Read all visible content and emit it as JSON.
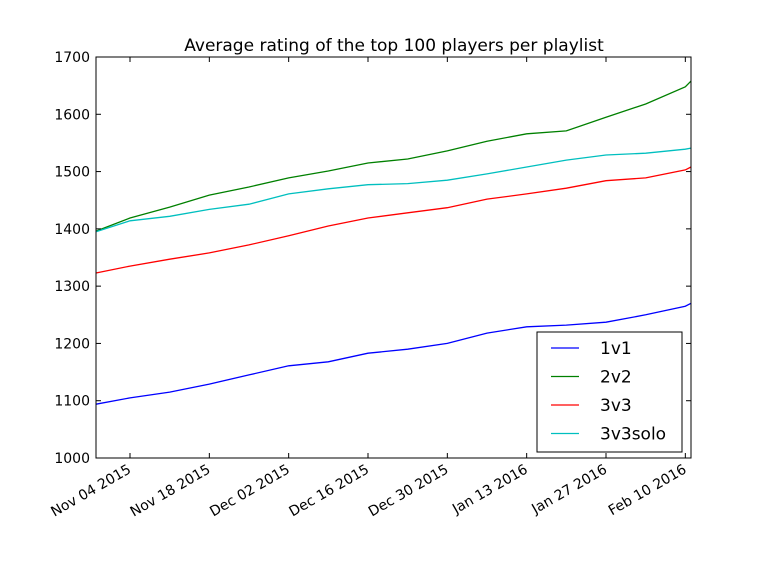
{
  "chart_data": {
    "type": "line",
    "title": "Average rating of the top 100 players per playlist",
    "xlabel": "",
    "ylabel": "",
    "xlim": [
      "2015-10-29",
      "2016-02-11"
    ],
    "ylim": [
      1000,
      1700
    ],
    "yticks": [
      1000,
      1100,
      1200,
      1300,
      1400,
      1500,
      1600,
      1700
    ],
    "xticks": [
      {
        "date": "2015-11-04",
        "label": "Nov 04 2015"
      },
      {
        "date": "2015-11-18",
        "label": "Nov 18 2015"
      },
      {
        "date": "2015-12-02",
        "label": "Dec 02 2015"
      },
      {
        "date": "2015-12-16",
        "label": "Dec 16 2015"
      },
      {
        "date": "2015-12-30",
        "label": "Dec 30 2015"
      },
      {
        "date": "2016-01-13",
        "label": "Jan 13 2016"
      },
      {
        "date": "2016-01-27",
        "label": "Jan 27 2016"
      },
      {
        "date": "2016-02-10",
        "label": "Feb 10 2016"
      }
    ],
    "grid": false,
    "legend_position": "bottom-right",
    "x": [
      "2015-10-29",
      "2015-11-04",
      "2015-11-11",
      "2015-11-18",
      "2015-11-25",
      "2015-12-02",
      "2015-12-09",
      "2015-12-16",
      "2015-12-23",
      "2015-12-30",
      "2016-01-06",
      "2016-01-13",
      "2016-01-20",
      "2016-01-27",
      "2016-02-03",
      "2016-02-10",
      "2016-02-11"
    ],
    "series": [
      {
        "name": "1v1",
        "color": "#0000ff",
        "values": [
          1094,
          1105,
          1115,
          1129,
          1145,
          1161,
          1168,
          1183,
          1190,
          1200,
          1218,
          1229,
          1232,
          1237,
          1250,
          1265,
          1270
        ]
      },
      {
        "name": "2v2",
        "color": "#008000",
        "values": [
          1396,
          1419,
          1438,
          1459,
          1473,
          1489,
          1501,
          1515,
          1522,
          1536,
          1553,
          1566,
          1571,
          1595,
          1618,
          1648,
          1658
        ]
      },
      {
        "name": "3v3",
        "color": "#ff0000",
        "values": [
          1323,
          1335,
          1347,
          1358,
          1372,
          1388,
          1405,
          1419,
          1428,
          1437,
          1452,
          1461,
          1471,
          1484,
          1489,
          1503,
          1508
        ]
      },
      {
        "name": "3v3solo",
        "color": "#00bfbf",
        "values": [
          1395,
          1414,
          1422,
          1434,
          1443,
          1461,
          1470,
          1477,
          1479,
          1485,
          1496,
          1508,
          1520,
          1529,
          1532,
          1539,
          1541
        ]
      }
    ]
  }
}
